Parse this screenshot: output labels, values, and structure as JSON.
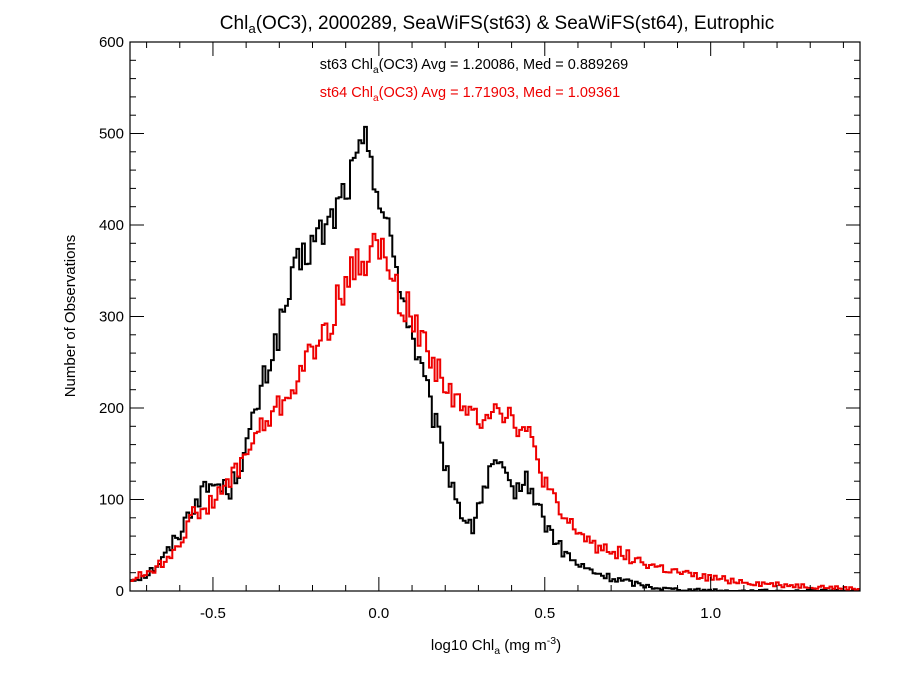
{
  "chart_data": {
    "type": "line",
    "title": {
      "parts": [
        {
          "t": "Chl",
          "sub": false
        },
        {
          "t": "a",
          "sub": true
        },
        {
          "t": "(OC3), 2000289, SeaWiFS(st63) & SeaWiFS(st64), Eutrophic",
          "sub": false
        }
      ]
    },
    "xlabel": {
      "parts": [
        {
          "t": "log10 Chl",
          "sub": false
        },
        {
          "t": "a",
          "sub": true
        },
        {
          "t": " (mg m",
          "sub": false
        },
        {
          "t": "-3",
          "sup": true
        },
        {
          "t": ")",
          "sub": false
        }
      ]
    },
    "ylabel": "Number of Observations",
    "xlim": [
      -0.75,
      1.45
    ],
    "ylim": [
      0,
      600
    ],
    "xticks": [
      {
        "value": -0.5,
        "label": "-0.5"
      },
      {
        "value": 0.0,
        "label": "0.0"
      },
      {
        "value": 0.5,
        "label": "0.5"
      },
      {
        "value": 1.0,
        "label": "1.0"
      }
    ],
    "yticks": [
      {
        "value": 0,
        "label": "0"
      },
      {
        "value": 100,
        "label": "100"
      },
      {
        "value": 200,
        "label": "200"
      },
      {
        "value": 300,
        "label": "300"
      },
      {
        "value": 400,
        "label": "400"
      },
      {
        "value": 500,
        "label": "500"
      },
      {
        "value": 600,
        "label": "600"
      }
    ],
    "annotations": [
      {
        "color": "#000000",
        "parts": [
          {
            "t": "st63 Chl",
            "sub": false
          },
          {
            "t": "a",
            "sub": true
          },
          {
            "t": "(OC3) Avg = 1.20086, Med = 0.889269",
            "sub": false
          }
        ]
      },
      {
        "color": "#ee0000",
        "parts": [
          {
            "t": "st64 Chl",
            "sub": false
          },
          {
            "t": "a",
            "sub": true
          },
          {
            "t": "(OC3) Avg = 1.71903, Med = 1.09361",
            "sub": false
          }
        ]
      }
    ],
    "grid": false,
    "step_histogram": true,
    "series": [
      {
        "color": "#000000",
        "x": [
          -0.75,
          -0.7,
          -0.65,
          -0.6,
          -0.55,
          -0.5,
          -0.45,
          -0.4,
          -0.35,
          -0.3,
          -0.25,
          -0.2,
          -0.15,
          -0.1,
          -0.05,
          -0.03,
          0.0,
          0.05,
          0.1,
          0.15,
          0.2,
          0.25,
          0.28,
          0.3,
          0.35,
          0.4,
          0.45,
          0.5,
          0.55,
          0.6,
          0.65,
          0.7,
          0.75,
          0.8,
          0.85,
          0.9,
          0.95,
          1.0,
          1.05,
          1.1,
          1.15,
          1.2,
          1.25,
          1.3,
          1.35,
          1.4,
          1.45
        ],
        "y": [
          12,
          18,
          35,
          65,
          100,
          118,
          110,
          155,
          225,
          285,
          350,
          380,
          400,
          440,
          480,
          495,
          430,
          360,
          280,
          210,
          140,
          85,
          65,
          95,
          140,
          110,
          120,
          75,
          45,
          28,
          20,
          14,
          10,
          6,
          3,
          2,
          1,
          1,
          0,
          0,
          0,
          0,
          0,
          0,
          0,
          0,
          0
        ]
      },
      {
        "color": "#ee0000",
        "x": [
          -0.75,
          -0.7,
          -0.65,
          -0.6,
          -0.55,
          -0.5,
          -0.45,
          -0.4,
          -0.35,
          -0.3,
          -0.25,
          -0.2,
          -0.15,
          -0.1,
          -0.05,
          0.0,
          0.05,
          0.1,
          0.15,
          0.2,
          0.25,
          0.3,
          0.35,
          0.4,
          0.45,
          0.5,
          0.55,
          0.6,
          0.65,
          0.7,
          0.75,
          0.8,
          0.85,
          0.9,
          0.95,
          1.0,
          1.05,
          1.1,
          1.15,
          1.2,
          1.25,
          1.3,
          1.35,
          1.4,
          1.45
        ],
        "y": [
          12,
          20,
          30,
          55,
          88,
          95,
          120,
          150,
          180,
          200,
          230,
          260,
          290,
          340,
          360,
          380,
          330,
          300,
          260,
          230,
          195,
          190,
          205,
          190,
          170,
          120,
          80,
          65,
          50,
          45,
          38,
          30,
          25,
          20,
          16,
          14,
          12,
          10,
          8,
          7,
          6,
          5,
          4,
          3,
          2
        ]
      }
    ]
  }
}
